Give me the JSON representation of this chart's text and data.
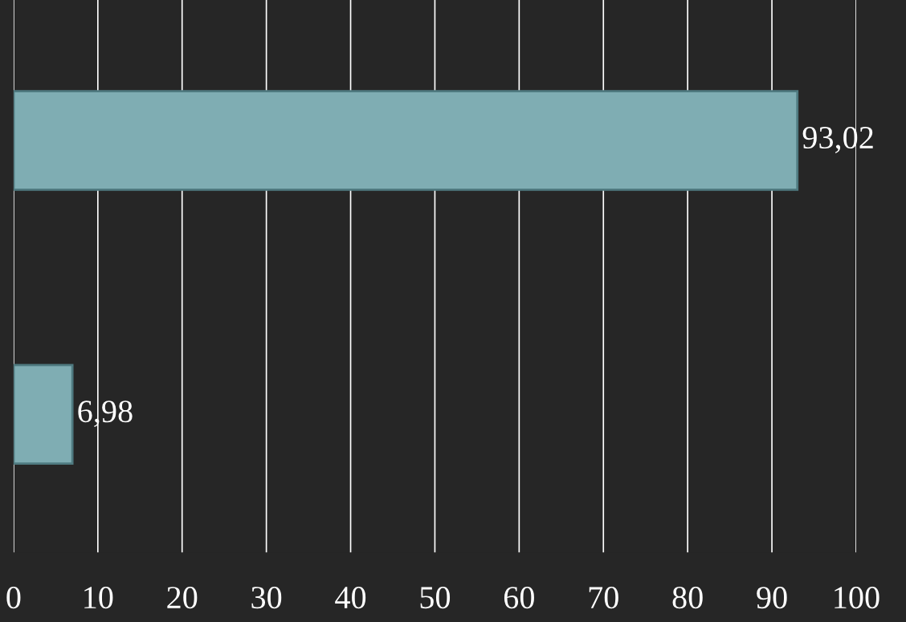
{
  "chart_data": {
    "type": "bar",
    "orientation": "horizontal",
    "categories": [
      null,
      null
    ],
    "values": [
      93.02,
      6.98
    ],
    "value_labels": [
      "93,02",
      "6,98"
    ],
    "color": "#7fadb3",
    "xlim": [
      0,
      100
    ],
    "xticks": [
      0,
      10,
      20,
      30,
      40,
      50,
      60,
      70,
      80,
      90,
      100
    ],
    "grid": "x",
    "legend": false
  }
}
